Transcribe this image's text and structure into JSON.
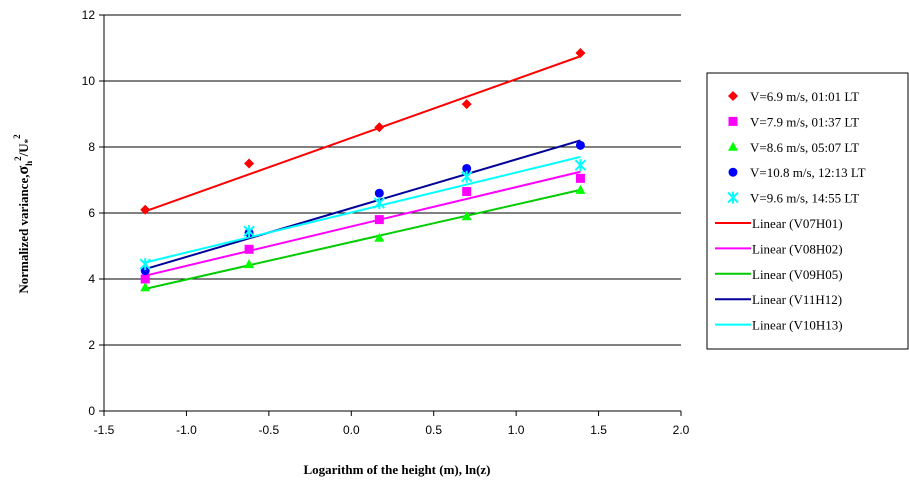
{
  "chart_data": {
    "type": "scatter",
    "xlabel": "Logarithm of the height (m), ln(z)",
    "ylabel": {
      "main": "Normalized variance,",
      "sigma": "σ",
      "sigma_sub": "h",
      "sigma_sup": "2",
      "slash": "/U",
      "u_sub": "*",
      "u_sup": "2"
    },
    "xlim": [
      -1.5,
      2.0
    ],
    "ylim": [
      0,
      12
    ],
    "xticks": [
      -1.5,
      -1.0,
      -0.5,
      0.0,
      0.5,
      1.0,
      1.5,
      2.0
    ],
    "xtick_labels": [
      "-1.5",
      "-1.0",
      "-0.5",
      "0.0",
      "0.5",
      "1.0",
      "1.5",
      "2.0"
    ],
    "yticks": [
      0,
      2,
      4,
      6,
      8,
      10,
      12
    ],
    "ytick_labels": [
      "0",
      "2",
      "4",
      "6",
      "8",
      "10",
      "12"
    ],
    "grid": "horizontal",
    "legend_position": "right",
    "x": [
      -1.25,
      -0.62,
      0.17,
      0.7,
      1.39
    ],
    "series": [
      {
        "name": "V=6.9 m/s, 01:01 LT",
        "marker": "diamond",
        "color": "#ff0000",
        "values": [
          6.1,
          7.5,
          8.6,
          9.3,
          10.85
        ]
      },
      {
        "name": "V=7.9 m/s, 01:37 LT",
        "marker": "square",
        "color": "#ff00ff",
        "values": [
          4.0,
          4.9,
          5.8,
          6.65,
          7.05
        ]
      },
      {
        "name": "V=8.6 m/s, 05:07 LT",
        "marker": "triangle",
        "color": "#00ff00",
        "values": [
          3.75,
          4.45,
          5.25,
          5.9,
          6.7
        ]
      },
      {
        "name": "V=10.8 m/s, 12:13 LT",
        "marker": "circle",
        "color": "#0000ff",
        "values": [
          4.25,
          5.4,
          6.6,
          7.35,
          8.05
        ]
      },
      {
        "name": "V=9.6 m/s, 14:55 LT",
        "marker": "asterisk",
        "color": "#00ffff",
        "values": [
          4.45,
          5.45,
          6.3,
          7.1,
          7.45
        ]
      }
    ],
    "trendlines": [
      {
        "name": "Linear (V07H01)",
        "color": "#ff0000",
        "x_range": [
          -1.25,
          1.39
        ],
        "y_range": [
          6.05,
          10.75
        ]
      },
      {
        "name": "Linear (V08H02)",
        "color": "#ff00ff",
        "x_range": [
          -1.25,
          1.39
        ],
        "y_range": [
          4.1,
          7.25
        ]
      },
      {
        "name": "Linear (V09H05)",
        "color": "#00cc00",
        "x_range": [
          -1.25,
          1.39
        ],
        "y_range": [
          3.7,
          6.7
        ]
      },
      {
        "name": "Linear (V11H12)",
        "color": "#000099",
        "x_range": [
          -1.25,
          1.39
        ],
        "y_range": [
          4.3,
          8.2
        ]
      },
      {
        "name": "Linear (V10H13)",
        "color": "#00ffff",
        "x_range": [
          -1.25,
          1.39
        ],
        "y_range": [
          4.5,
          7.7
        ]
      }
    ]
  }
}
